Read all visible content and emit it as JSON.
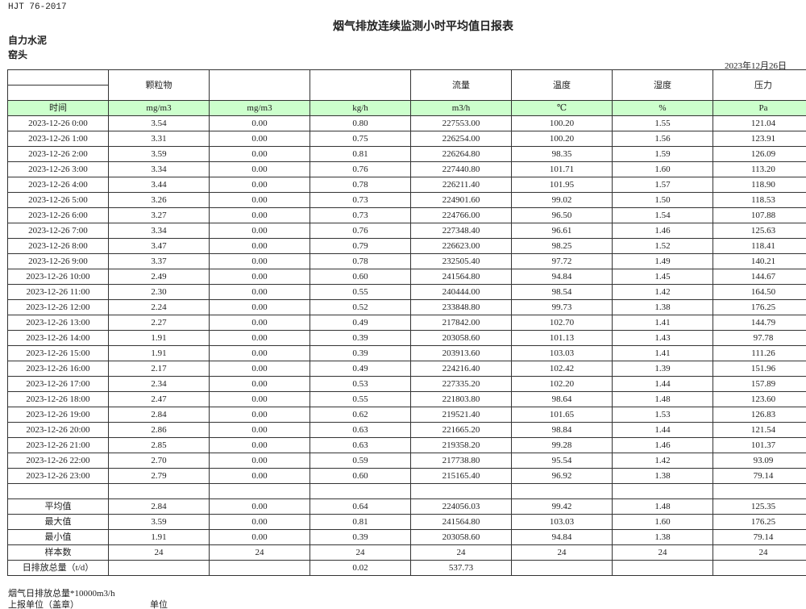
{
  "standard": "HJT  76-2017",
  "title": "烟气排放连续监测小时平均值日报表",
  "company": "自力水泥",
  "unit_name": "窑头",
  "report_date": "2023年12月26日",
  "header": [
    "",
    "颗粒物",
    "",
    "",
    "流量",
    "温度",
    "湿度",
    "压力"
  ],
  "units": [
    "时间",
    "mg/m3",
    "mg/m3",
    "kg/h",
    "m3/h",
    "℃",
    "%",
    "Pa"
  ],
  "rows": [
    [
      "2023-12-26 0:00",
      "3.54",
      "0.00",
      "0.80",
      "227553.00",
      "100.20",
      "1.55",
      "121.04"
    ],
    [
      "2023-12-26 1:00",
      "3.31",
      "0.00",
      "0.75",
      "226254.00",
      "100.20",
      "1.56",
      "123.91"
    ],
    [
      "2023-12-26 2:00",
      "3.59",
      "0.00",
      "0.81",
      "226264.80",
      "98.35",
      "1.59",
      "126.09"
    ],
    [
      "2023-12-26 3:00",
      "3.34",
      "0.00",
      "0.76",
      "227440.80",
      "101.71",
      "1.60",
      "113.20"
    ],
    [
      "2023-12-26 4:00",
      "3.44",
      "0.00",
      "0.78",
      "226211.40",
      "101.95",
      "1.57",
      "118.90"
    ],
    [
      "2023-12-26 5:00",
      "3.26",
      "0.00",
      "0.73",
      "224901.60",
      "99.02",
      "1.50",
      "118.53"
    ],
    [
      "2023-12-26 6:00",
      "3.27",
      "0.00",
      "0.73",
      "224766.00",
      "96.50",
      "1.54",
      "107.88"
    ],
    [
      "2023-12-26 7:00",
      "3.34",
      "0.00",
      "0.76",
      "227348.40",
      "96.61",
      "1.46",
      "125.63"
    ],
    [
      "2023-12-26 8:00",
      "3.47",
      "0.00",
      "0.79",
      "226623.00",
      "98.25",
      "1.52",
      "118.41"
    ],
    [
      "2023-12-26 9:00",
      "3.37",
      "0.00",
      "0.78",
      "232505.40",
      "97.72",
      "1.49",
      "140.21"
    ],
    [
      "2023-12-26 10:00",
      "2.49",
      "0.00",
      "0.60",
      "241564.80",
      "94.84",
      "1.45",
      "144.67"
    ],
    [
      "2023-12-26 11:00",
      "2.30",
      "0.00",
      "0.55",
      "240444.00",
      "98.54",
      "1.42",
      "164.50"
    ],
    [
      "2023-12-26 12:00",
      "2.24",
      "0.00",
      "0.52",
      "233848.80",
      "99.73",
      "1.38",
      "176.25"
    ],
    [
      "2023-12-26 13:00",
      "2.27",
      "0.00",
      "0.49",
      "217842.00",
      "102.70",
      "1.41",
      "144.79"
    ],
    [
      "2023-12-26 14:00",
      "1.91",
      "0.00",
      "0.39",
      "203058.60",
      "101.13",
      "1.43",
      "97.78"
    ],
    [
      "2023-12-26 15:00",
      "1.91",
      "0.00",
      "0.39",
      "203913.60",
      "103.03",
      "1.41",
      "111.26"
    ],
    [
      "2023-12-26 16:00",
      "2.17",
      "0.00",
      "0.49",
      "224216.40",
      "102.42",
      "1.39",
      "151.96"
    ],
    [
      "2023-12-26 17:00",
      "2.34",
      "0.00",
      "0.53",
      "227335.20",
      "102.20",
      "1.44",
      "157.89"
    ],
    [
      "2023-12-26 18:00",
      "2.47",
      "0.00",
      "0.55",
      "221803.80",
      "98.64",
      "1.48",
      "123.60"
    ],
    [
      "2023-12-26 19:00",
      "2.84",
      "0.00",
      "0.62",
      "219521.40",
      "101.65",
      "1.53",
      "126.83"
    ],
    [
      "2023-12-26 20:00",
      "2.86",
      "0.00",
      "0.63",
      "221665.20",
      "98.84",
      "1.44",
      "121.54"
    ],
    [
      "2023-12-26 21:00",
      "2.85",
      "0.00",
      "0.63",
      "219358.20",
      "99.28",
      "1.46",
      "101.37"
    ],
    [
      "2023-12-26 22:00",
      "2.70",
      "0.00",
      "0.59",
      "217738.80",
      "95.54",
      "1.42",
      "93.09"
    ],
    [
      "2023-12-26 23:00",
      "2.79",
      "0.00",
      "0.60",
      "215165.40",
      "96.92",
      "1.38",
      "79.14"
    ]
  ],
  "stats": [
    [
      "平均值",
      "2.84",
      "0.00",
      "0.64",
      "224056.03",
      "99.42",
      "1.48",
      "125.35"
    ],
    [
      "最大值",
      "3.59",
      "0.00",
      "0.81",
      "241564.80",
      "103.03",
      "1.60",
      "176.25"
    ],
    [
      "最小值",
      "1.91",
      "0.00",
      "0.39",
      "203058.60",
      "94.84",
      "1.38",
      "79.14"
    ],
    [
      "样本数",
      "24",
      "24",
      "24",
      "24",
      "24",
      "24",
      "24"
    ],
    [
      "日排放总量（t/d）",
      "",
      "",
      "0.02",
      "537.73",
      "",
      "",
      ""
    ]
  ],
  "footer": {
    "note": "烟气日排放总量*10000m3/h",
    "reporter_label": "上报单位（盖章）",
    "reporter_value": "单位"
  }
}
